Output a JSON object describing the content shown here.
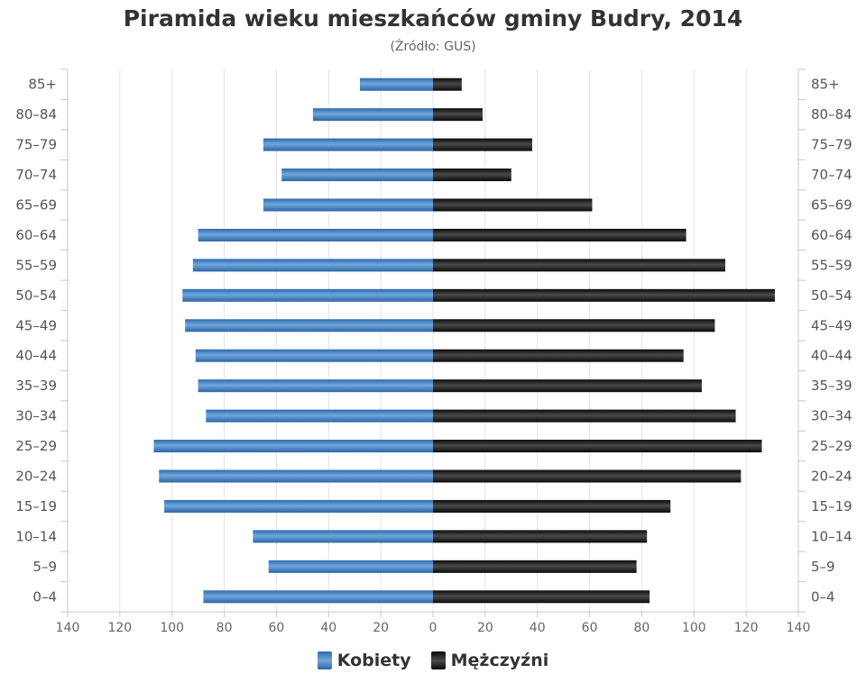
{
  "chart_data": {
    "type": "bar",
    "orientation": "horizontal-population-pyramid",
    "title": "Piramida wieku mieszkańców gminy Budry, 2014",
    "subtitle": "(Źródło: GUS)",
    "categories": [
      "85+",
      "80-84",
      "75-79",
      "70-74",
      "65-69",
      "60-64",
      "55-59",
      "50-54",
      "45-49",
      "40-44",
      "35-39",
      "30-34",
      "25-29",
      "20-24",
      "15-19",
      "10-14",
      "5-9",
      "0-4"
    ],
    "series": [
      {
        "name": "Kobiety",
        "color": "#3d7cc0",
        "values": [
          28,
          46,
          65,
          58,
          65,
          90,
          92,
          96,
          95,
          91,
          90,
          87,
          107,
          105,
          103,
          69,
          63,
          88
        ]
      },
      {
        "name": "Mężczyźni",
        "color": "#1a1a1a",
        "values": [
          11,
          19,
          38,
          30,
          61,
          97,
          112,
          131,
          108,
          96,
          103,
          116,
          126,
          118,
          91,
          82,
          78,
          83
        ]
      }
    ],
    "xticks": [
      140,
      120,
      100,
      80,
      60,
      40,
      20,
      0,
      20,
      40,
      60,
      80,
      100,
      120,
      140
    ],
    "xlim": [
      -140,
      140
    ],
    "grid": true,
    "legend": "bottom-center"
  }
}
